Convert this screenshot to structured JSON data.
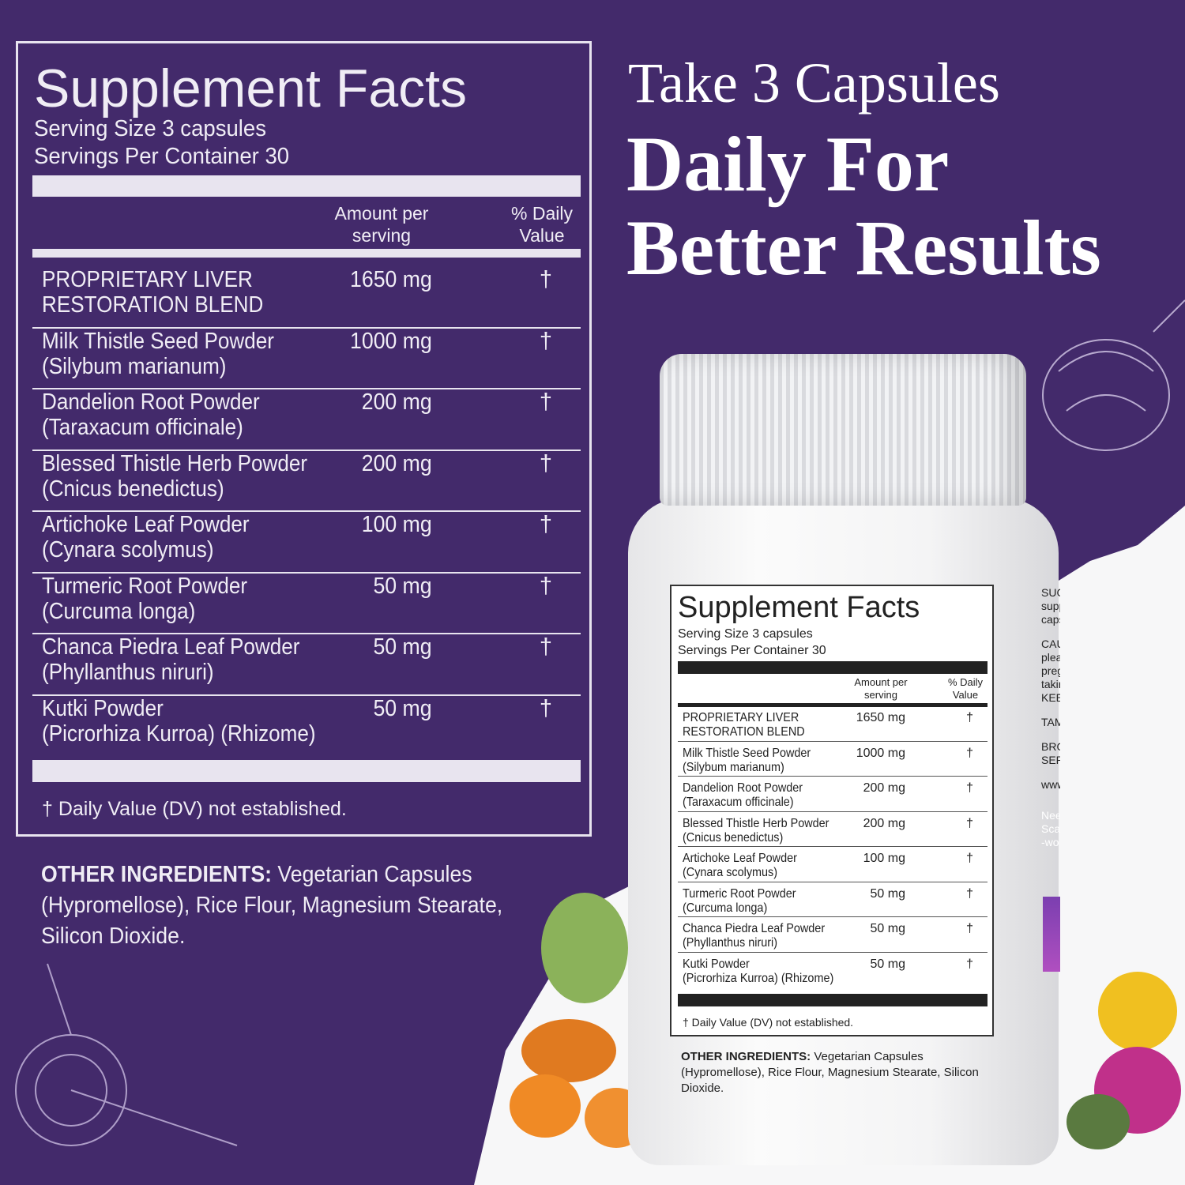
{
  "facts": {
    "title": "Supplement Facts",
    "serving_size": "Serving Size 3 capsules",
    "servings_per_container": "Servings Per Container 30",
    "col_amount_1": "Amount per",
    "col_amount_2": "serving",
    "col_dv_1": "% Daily",
    "col_dv_2": "Value",
    "ingredients": [
      {
        "name": "PROPRIETARY LIVER",
        "name2": "RESTORATION BLEND",
        "amount": "1650 mg",
        "dv": "†"
      },
      {
        "name": "Milk Thistle Seed Powder",
        "name2": "(Silybum marianum)",
        "amount": "1000 mg",
        "dv": "†"
      },
      {
        "name": "Dandelion Root Powder",
        "name2": "(Taraxacum officinale)",
        "amount": "200 mg",
        "dv": "†"
      },
      {
        "name": "Blessed Thistle Herb Powder",
        "name2": "(Cnicus benedictus)",
        "amount": "200 mg",
        "dv": "†"
      },
      {
        "name": "Artichoke Leaf Powder",
        "name2": "(Cynara scolymus)",
        "amount": "100 mg",
        "dv": "†"
      },
      {
        "name": "Turmeric Root Powder",
        "name2": "(Curcuma longa)",
        "amount": "50 mg",
        "dv": "†"
      },
      {
        "name": "Chanca Piedra Leaf Powder",
        "name2": "(Phyllanthus niruri)",
        "amount": "50 mg",
        "dv": "†"
      },
      {
        "name": "Kutki Powder",
        "name2": "(Picrorhiza Kurroa) (Rhizome)",
        "amount": "50 mg",
        "dv": "†"
      }
    ],
    "footnote": "† Daily Value (DV) not established.",
    "other_label": "OTHER INGREDIENTS:",
    "other_text": " Vegetarian Capsules (Hypromellose), Rice Flour, Magnesium Stearate, Silicon Dioxide."
  },
  "headline": {
    "line1": "Take 3 Capsules",
    "line2": "Daily For",
    "line3": "Better Results"
  },
  "bottle_side_text": [
    "SUGG",
    "supp",
    "caps",
    "CAUTIO",
    "please c",
    "pregnar",
    "taking a",
    "KEEP OU",
    "TAMPER",
    "BROKEN",
    "SERI",
    "www",
    "Nee",
    "Sca",
    "-wo"
  ],
  "colors": {
    "background": "#432a6b",
    "panel_line": "#e8e4ef",
    "text": "#ffffff"
  }
}
